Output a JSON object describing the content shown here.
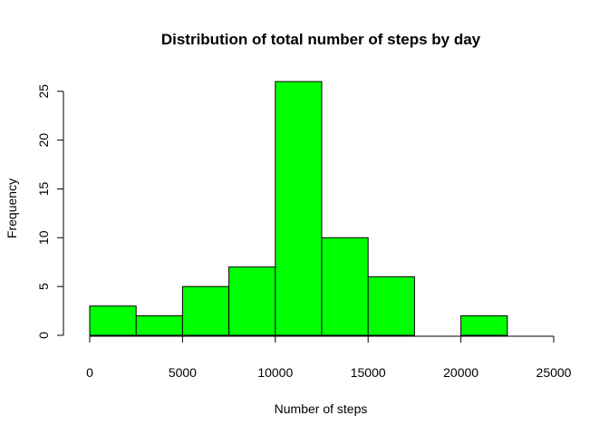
{
  "chart_data": {
    "type": "bar",
    "title": "Distribution of total number of steps by day",
    "xlabel": "Number of steps",
    "ylabel": "Frequency",
    "bins": [
      {
        "start": 0,
        "end": 2500,
        "value": 3
      },
      {
        "start": 2500,
        "end": 5000,
        "value": 2
      },
      {
        "start": 5000,
        "end": 7500,
        "value": 5
      },
      {
        "start": 7500,
        "end": 10000,
        "value": 7
      },
      {
        "start": 10000,
        "end": 12500,
        "value": 26
      },
      {
        "start": 12500,
        "end": 15000,
        "value": 10
      },
      {
        "start": 15000,
        "end": 17500,
        "value": 6
      },
      {
        "start": 17500,
        "end": 20000,
        "value": 0
      },
      {
        "start": 20000,
        "end": 22500,
        "value": 2
      },
      {
        "start": 22500,
        "end": 25000,
        "value": 0
      }
    ],
    "xlim": [
      0,
      25000
    ],
    "ylim": [
      0,
      26
    ],
    "x_ticks": [
      0,
      5000,
      10000,
      15000,
      20000,
      25000
    ],
    "y_ticks": [
      0,
      5,
      10,
      15,
      20,
      25
    ],
    "bar_color": "#00ff00",
    "bar_border_color": "#000000",
    "grid": false
  }
}
